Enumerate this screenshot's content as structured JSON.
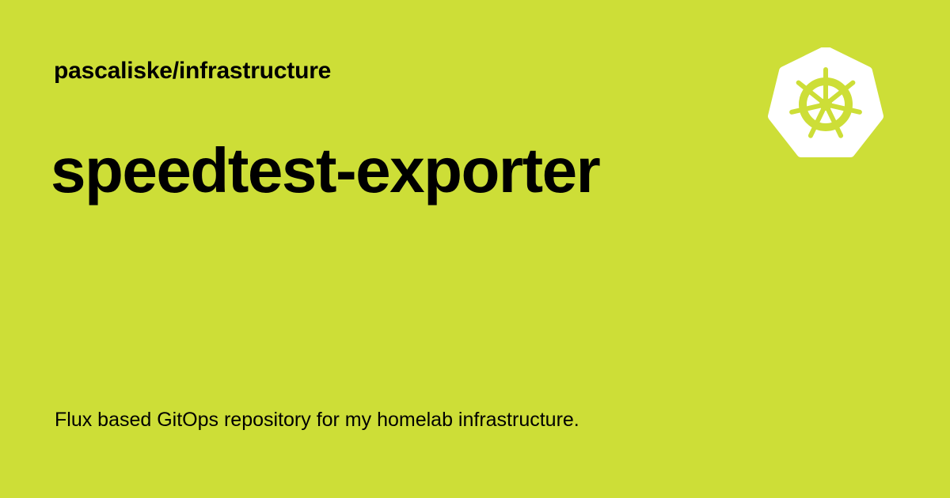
{
  "colors": {
    "background": "#CDDE37",
    "text": "#000000",
    "logo_fill": "#FFFFFF"
  },
  "header": {
    "repository": "pascaliske/infrastructure"
  },
  "main": {
    "title": "speedtest-exporter",
    "description": "Flux based GitOps repository for my homelab infrastructure."
  },
  "logo": {
    "icon": "kubernetes-helm-wheel-icon"
  }
}
